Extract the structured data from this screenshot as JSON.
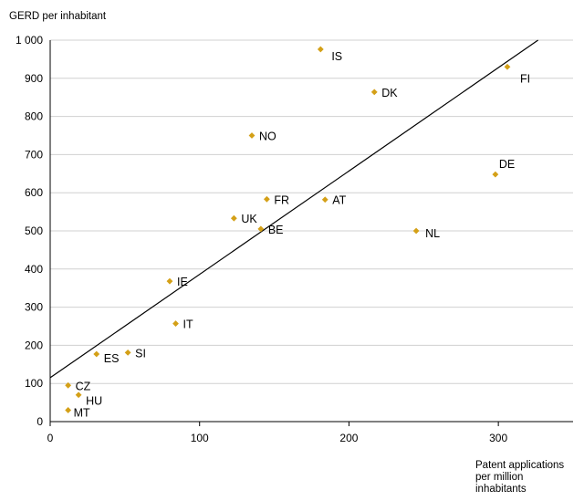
{
  "chart_data": {
    "type": "scatter",
    "title": "",
    "ylabel": "GERD per inhabitant",
    "xlabel_lines": [
      "Patent applications",
      "per million",
      "inhabitants"
    ],
    "xlim": [
      0,
      350
    ],
    "ylim": [
      0,
      1000
    ],
    "xticks": [
      0,
      100,
      200,
      300
    ],
    "xtick_labels": [
      "0",
      "100",
      "200",
      "300"
    ],
    "yticks": [
      0,
      100,
      200,
      300,
      400,
      500,
      600,
      700,
      800,
      900,
      1000
    ],
    "ytick_labels": [
      "0",
      "100",
      "200",
      "300",
      "400",
      "500",
      "600",
      "700",
      "800",
      "900",
      "1 000"
    ],
    "grid": "horizontal",
    "marker_color": "#d4a017",
    "trendline": {
      "intercept": 115,
      "slope": 2.71,
      "color": "#000000"
    },
    "points": [
      {
        "label": "IS",
        "x": 181,
        "y": 976
      },
      {
        "label": "FI",
        "x": 306,
        "y": 930
      },
      {
        "label": "DK",
        "x": 217,
        "y": 864
      },
      {
        "label": "NO",
        "x": 135,
        "y": 750
      },
      {
        "label": "DE",
        "x": 298,
        "y": 648
      },
      {
        "label": "FR",
        "x": 145,
        "y": 583
      },
      {
        "label": "AT",
        "x": 184,
        "y": 582
      },
      {
        "label": "UK",
        "x": 123,
        "y": 533
      },
      {
        "label": "BE",
        "x": 141,
        "y": 505
      },
      {
        "label": "NL",
        "x": 245,
        "y": 500
      },
      {
        "label": "IE",
        "x": 80,
        "y": 368
      },
      {
        "label": "IT",
        "x": 84,
        "y": 257
      },
      {
        "label": "ES",
        "x": 31,
        "y": 177
      },
      {
        "label": "SI",
        "x": 52,
        "y": 181
      },
      {
        "label": "CZ",
        "x": 12,
        "y": 95
      },
      {
        "label": "HU",
        "x": 19,
        "y": 70
      },
      {
        "label": "MT",
        "x": 12,
        "y": 30
      }
    ]
  }
}
